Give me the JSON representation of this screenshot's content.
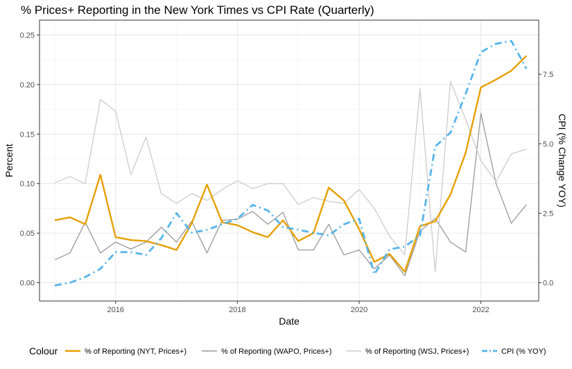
{
  "chart_data": {
    "type": "line",
    "title": "% Prices+ Reporting in the New York Times vs CPI Rate (Quarterly)",
    "xlabel": "Date",
    "ylabel": "Percent",
    "y2label": "CPI (% Change YOY)",
    "xlim": [
      2014.75,
      2022.95
    ],
    "ylim": [
      -0.0185,
      0.265
    ],
    "y2lim": [
      -0.66,
      9.45
    ],
    "x_ticks": [
      {
        "value": 2016,
        "label": "2016"
      },
      {
        "value": 2018,
        "label": "2018"
      },
      {
        "value": 2020,
        "label": "2020"
      },
      {
        "value": 2022,
        "label": "2022"
      }
    ],
    "y_ticks": [
      {
        "value": 0.0,
        "label": "0.00"
      },
      {
        "value": 0.05,
        "label": "0.05"
      },
      {
        "value": 0.1,
        "label": "0.10"
      },
      {
        "value": 0.15,
        "label": "0.15"
      },
      {
        "value": 0.2,
        "label": "0.20"
      },
      {
        "value": 0.25,
        "label": "0.25"
      }
    ],
    "y2_ticks": [
      {
        "value": 0.0,
        "label": "0.0"
      },
      {
        "value": 2.5,
        "label": "2.5"
      },
      {
        "value": 5.0,
        "label": "5.0"
      },
      {
        "value": 7.5,
        "label": "7.5"
      }
    ],
    "grid": true,
    "legend_position": "bottom",
    "legend_title": "Colour",
    "x": [
      2015.0,
      2015.25,
      2015.5,
      2015.75,
      2016.0,
      2016.25,
      2016.5,
      2016.75,
      2017.0,
      2017.25,
      2017.5,
      2017.75,
      2018.0,
      2018.25,
      2018.5,
      2018.75,
      2019.0,
      2019.25,
      2019.5,
      2019.75,
      2020.0,
      2020.25,
      2020.5,
      2020.75,
      2021.0,
      2021.25,
      2021.5,
      2021.75,
      2022.0,
      2022.25,
      2022.5,
      2022.75
    ],
    "series": [
      {
        "name": "% of Reporting (NYT, Prices+)",
        "color": "#E69F00",
        "axis": "left",
        "style": "solid",
        "values": [
          0.063,
          0.066,
          0.059,
          0.109,
          0.046,
          0.043,
          0.042,
          0.038,
          0.033,
          0.06,
          0.099,
          0.061,
          0.058,
          0.051,
          0.046,
          0.063,
          0.042,
          0.05,
          0.096,
          0.083,
          0.054,
          0.021,
          0.029,
          0.011,
          0.057,
          0.062,
          0.089,
          0.131,
          0.197,
          0.205,
          0.214,
          0.229
        ]
      },
      {
        "name": "% of Reporting (WAPO, Prices+)",
        "color": "#999999",
        "axis": "left",
        "style": "solid",
        "values": [
          0.023,
          0.03,
          0.061,
          0.03,
          0.041,
          0.034,
          0.041,
          0.056,
          0.041,
          0.062,
          0.03,
          0.063,
          0.064,
          0.072,
          0.059,
          0.071,
          0.033,
          0.033,
          0.059,
          0.028,
          0.033,
          0.014,
          0.028,
          0.007,
          0.052,
          0.065,
          0.041,
          0.031,
          0.171,
          0.1,
          0.06,
          0.079
        ]
      },
      {
        "name": "% of Reporting (WSJ, Prices+)",
        "color": "#cccccc",
        "axis": "left",
        "style": "solid",
        "values": [
          0.101,
          0.107,
          0.1,
          0.185,
          0.173,
          0.109,
          0.147,
          0.09,
          0.08,
          0.09,
          0.083,
          0.094,
          0.103,
          0.095,
          0.1,
          0.1,
          0.079,
          0.086,
          0.082,
          0.08,
          0.094,
          0.075,
          0.047,
          0.028,
          0.196,
          0.011,
          0.203,
          0.165,
          0.123,
          0.102,
          0.13,
          0.135
        ]
      },
      {
        "name": "CPI (% YOY)",
        "color": "#56B4E9",
        "axis": "right",
        "style": "dashdot",
        "values": [
          -0.1,
          0.0,
          0.2,
          0.5,
          1.1,
          1.1,
          1.0,
          1.6,
          2.5,
          1.8,
          1.9,
          2.1,
          2.3,
          2.8,
          2.6,
          2.0,
          1.9,
          1.8,
          1.7,
          2.1,
          2.3,
          0.3,
          1.2,
          1.3,
          1.7,
          4.9,
          5.4,
          6.8,
          8.3,
          8.6,
          8.7,
          7.7
        ]
      }
    ]
  }
}
